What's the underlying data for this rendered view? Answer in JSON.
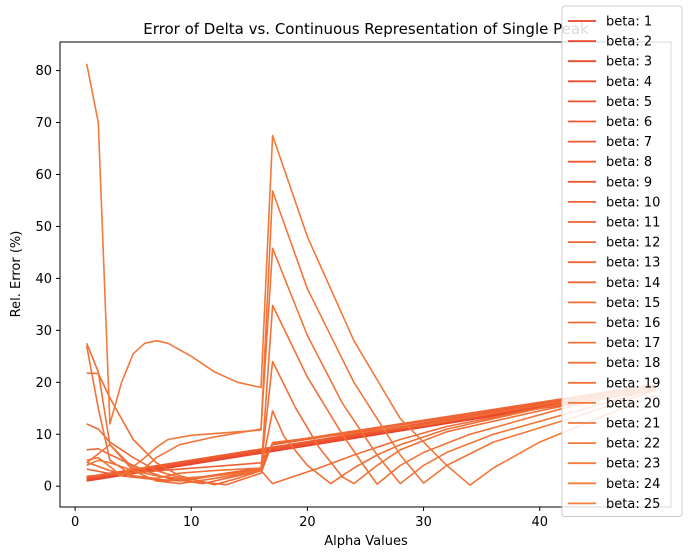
{
  "chart_data": {
    "type": "line",
    "title": "Error of Delta vs. Continuous Representation of Single Peak",
    "xlabel": "Alpha Values",
    "ylabel": "Rel. Error (%)",
    "xlim": [
      -1.3,
      51.3
    ],
    "ylim": [
      -4.0,
      85.5
    ],
    "xticks": [
      0,
      10,
      20,
      30,
      40
    ],
    "yticks": [
      0,
      10,
      20,
      30,
      40,
      50,
      60,
      70,
      80
    ],
    "legend_position": "upper-right",
    "grid": false,
    "series": [
      {
        "name": "beta: 1",
        "color": "#e8402b",
        "x": [
          1,
          50
        ],
        "y": [
          1.0,
          18.5
        ]
      },
      {
        "name": "beta: 2",
        "color": "#e9442c",
        "x": [
          1,
          50
        ],
        "y": [
          1.1,
          18.6
        ]
      },
      {
        "name": "beta: 3",
        "color": "#ea482d",
        "x": [
          1,
          50
        ],
        "y": [
          1.2,
          18.7
        ]
      },
      {
        "name": "beta: 4",
        "color": "#eb4c2e",
        "x": [
          1,
          50
        ],
        "y": [
          1.3,
          18.8
        ]
      },
      {
        "name": "beta: 5",
        "color": "#ec502f",
        "x": [
          1,
          50
        ],
        "y": [
          1.4,
          18.9
        ]
      },
      {
        "name": "beta: 6",
        "color": "#ed5430",
        "x": [
          1,
          50
        ],
        "y": [
          1.5,
          19.0
        ]
      },
      {
        "name": "beta: 7",
        "color": "#ed5731",
        "x": [
          1,
          50
        ],
        "y": [
          1.6,
          19.1
        ]
      },
      {
        "name": "beta: 8",
        "color": "#ee5a31",
        "x": [
          1,
          50
        ],
        "y": [
          1.7,
          19.2
        ]
      },
      {
        "name": "beta: 9",
        "color": "#ee5d32",
        "x": [
          1,
          50
        ],
        "y": [
          1.8,
          19.3
        ]
      },
      {
        "name": "beta: 10",
        "color": "#ef6032",
        "x": [
          1,
          16,
          17,
          50
        ],
        "y": [
          1.9,
          4.5,
          8.0,
          19.4
        ]
      },
      {
        "name": "beta: 11",
        "color": "#ef6333",
        "x": [
          1,
          4,
          8,
          10,
          13,
          16,
          17,
          50
        ],
        "y": [
          3.3,
          2.0,
          1.0,
          1.5,
          2.5,
          3.5,
          8.1,
          19.5
        ]
      },
      {
        "name": "beta: 12",
        "color": "#f06534",
        "x": [
          1,
          3,
          6,
          9,
          12,
          16,
          17,
          50
        ],
        "y": [
          4.6,
          3.0,
          1.5,
          1.0,
          2.0,
          3.2,
          8.2,
          19.6
        ]
      },
      {
        "name": "beta: 13",
        "color": "#f06834",
        "x": [
          1,
          2,
          4,
          6,
          8,
          11,
          14,
          16,
          17,
          21,
          24,
          27,
          30,
          50
        ],
        "y": [
          7.0,
          7.2,
          5.0,
          3.0,
          1.5,
          0.5,
          2.0,
          3.0,
          8.3,
          9.5,
          10.2,
          11.0,
          11.7,
          19.5
        ]
      },
      {
        "name": "beta: 14",
        "color": "#f06a35",
        "x": [
          1,
          2,
          3,
          5,
          7,
          10,
          13,
          16,
          17,
          20,
          23,
          26,
          30,
          50
        ],
        "y": [
          12.0,
          11.0,
          8.5,
          5.5,
          3.0,
          1.0,
          0.3,
          2.5,
          8.4,
          9.2,
          10.0,
          10.8,
          11.8,
          19.4
        ]
      },
      {
        "name": "beta: 15",
        "color": "#f16c35",
        "x": [
          1,
          2,
          3,
          5,
          7,
          9,
          12,
          14,
          16,
          17,
          19,
          21,
          24,
          26,
          28,
          32,
          40,
          50
        ],
        "y": [
          21.8,
          21.7,
          17.0,
          9.0,
          4.5,
          2.0,
          0.3,
          1.5,
          3.0,
          0.5,
          2.0,
          3.5,
          6.0,
          7.5,
          9.0,
          11.5,
          15.0,
          19.3
        ]
      },
      {
        "name": "beta: 16",
        "color": "#f16e36",
        "x": [
          1,
          2,
          3,
          5,
          7,
          9,
          12,
          16,
          17,
          18,
          20,
          22,
          24,
          26,
          28,
          32,
          40,
          50
        ],
        "y": [
          27.5,
          22.0,
          8.0,
          3.0,
          1.0,
          0.5,
          1.5,
          3.0,
          14.5,
          9.5,
          4.0,
          0.5,
          3.5,
          6.0,
          8.0,
          11.0,
          15.0,
          19.2
        ]
      },
      {
        "name": "beta: 17",
        "color": "#f17037",
        "x": [
          1,
          2,
          3,
          5,
          7,
          9,
          12,
          16,
          17,
          19,
          21,
          23,
          24,
          26,
          28,
          32,
          40,
          50
        ],
        "y": [
          27.0,
          15.0,
          5.0,
          2.0,
          1.5,
          2.5,
          3.0,
          3.5,
          24.0,
          15.0,
          7.5,
          1.8,
          0.5,
          4.0,
          7.0,
          10.5,
          14.5,
          19.1
        ]
      },
      {
        "name": "beta: 18",
        "color": "#f27237",
        "x": [
          1,
          2,
          3,
          5,
          7,
          9,
          12,
          16,
          17,
          20,
          23,
          25,
          26,
          28,
          30,
          34,
          42,
          50
        ],
        "y": [
          4.0,
          5.0,
          4.5,
          3.0,
          2.0,
          1.5,
          2.0,
          3.0,
          34.8,
          21.0,
          10.0,
          3.5,
          0.4,
          4.0,
          6.5,
          10.0,
          15.0,
          19.0
        ]
      },
      {
        "name": "beta: 19",
        "color": "#f27438",
        "x": [
          1,
          3,
          5,
          6,
          7,
          9,
          12,
          16,
          17,
          20,
          23,
          26,
          28,
          30,
          32,
          36,
          44,
          50
        ],
        "y": [
          4.5,
          8.0,
          3.5,
          3.5,
          5.5,
          8.0,
          9.5,
          11.0,
          45.8,
          29.0,
          16.0,
          6.0,
          0.5,
          4.0,
          6.5,
          10.0,
          15.0,
          18.8
        ]
      },
      {
        "name": "beta: 20",
        "color": "#f27638",
        "x": [
          1,
          2,
          4,
          6,
          7,
          8,
          10,
          13,
          16,
          17,
          20,
          24,
          28,
          30,
          32,
          36,
          44,
          50
        ],
        "y": [
          5.0,
          5.5,
          2.0,
          5.5,
          7.5,
          9.0,
          9.8,
          10.3,
          10.8,
          56.8,
          38.0,
          20.0,
          6.0,
          0.6,
          4.0,
          8.5,
          14.0,
          18.5
        ]
      },
      {
        "name": "beta: 21",
        "color": "#f37839",
        "x": [
          1,
          2,
          3,
          4,
          5,
          6,
          7,
          8,
          10,
          12,
          14,
          16,
          17,
          20,
          24,
          28,
          32,
          34,
          36,
          40,
          46,
          50
        ],
        "y": [
          81.3,
          70.0,
          12.0,
          20.0,
          25.5,
          27.5,
          28.0,
          27.5,
          25.0,
          22.0,
          20.0,
          19.0,
          67.5,
          48.0,
          28.0,
          13.0,
          4.0,
          0.2,
          3.5,
          8.5,
          14.0,
          17.5
        ]
      },
      {
        "name": "beta: 22",
        "color": "#f37a39",
        "x": [],
        "y": []
      },
      {
        "name": "beta: 23",
        "color": "#f37b3a",
        "x": [],
        "y": []
      },
      {
        "name": "beta: 24",
        "color": "#f47d3a",
        "x": [],
        "y": []
      },
      {
        "name": "beta: 25",
        "color": "#f47f3b",
        "x": [],
        "y": []
      }
    ]
  }
}
